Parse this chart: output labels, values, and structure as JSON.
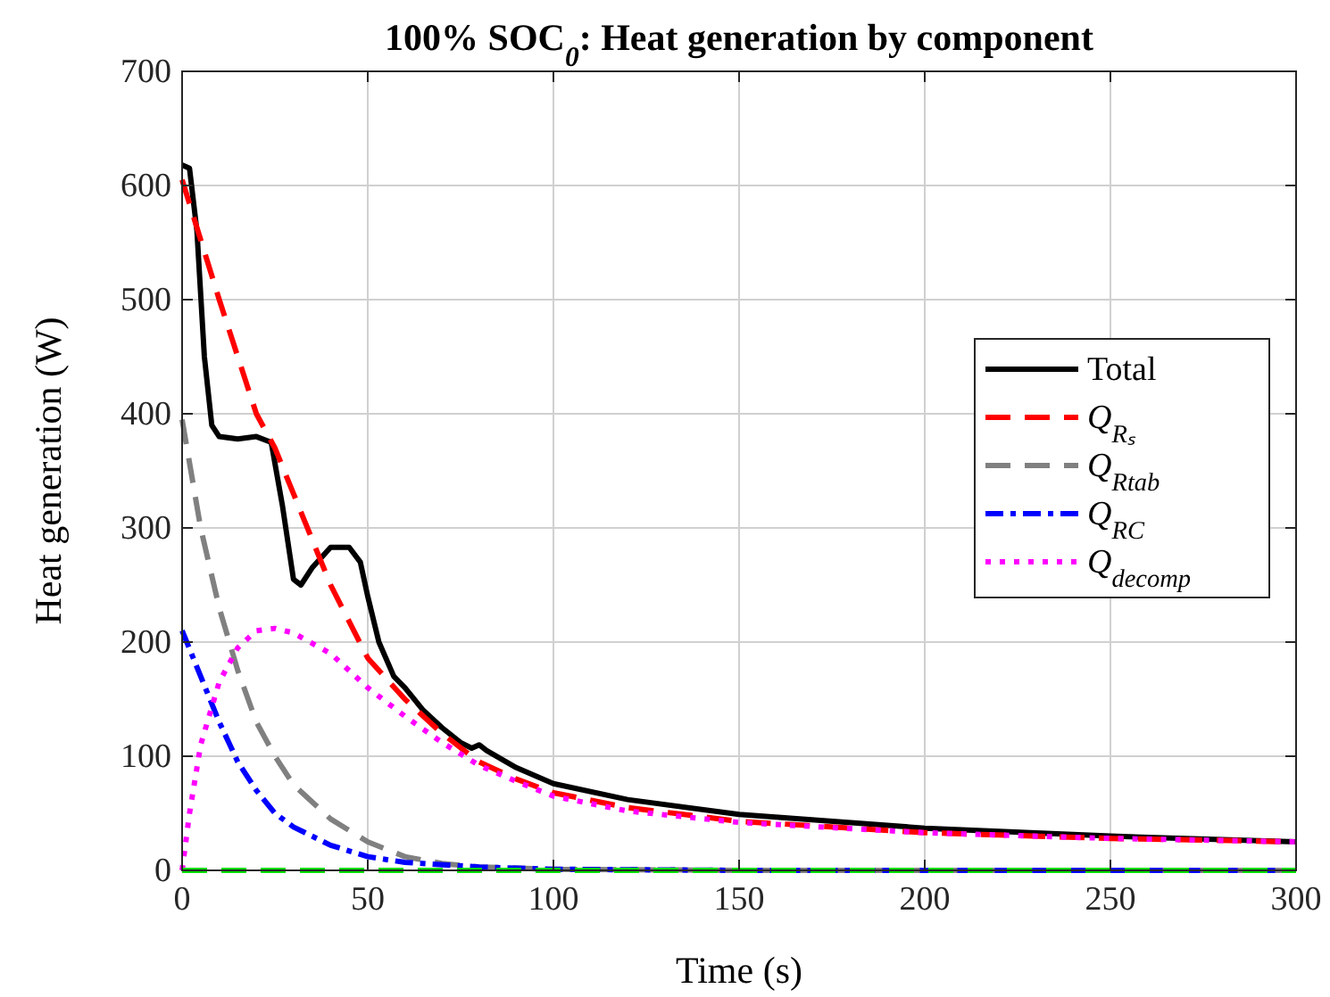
{
  "chart_data": {
    "type": "line",
    "title": "100% SOC$_{0}$: Heat generation by component",
    "xlabel": "Time (s)",
    "ylabel": "Heat generation (W)",
    "xlim": [
      0,
      300
    ],
    "ylim": [
      0,
      700
    ],
    "xticks": [
      0,
      50,
      100,
      150,
      200,
      250,
      300
    ],
    "yticks": [
      0,
      100,
      200,
      300,
      400,
      500,
      600,
      700
    ],
    "grid": true,
    "legend": "right",
    "series": [
      {
        "name": "Total",
        "color": "#000000",
        "line_style": "solid",
        "x": [
          0,
          2,
          4,
          6,
          8,
          10,
          15,
          20,
          24,
          27,
          30,
          32,
          35,
          40,
          45,
          48,
          50,
          53,
          57,
          60,
          65,
          70,
          75,
          78,
          80,
          82,
          90,
          100,
          120,
          150,
          200,
          250,
          300
        ],
        "values": [
          618,
          615,
          560,
          450,
          390,
          380,
          378,
          380,
          375,
          320,
          255,
          250,
          265,
          283,
          283,
          270,
          240,
          200,
          170,
          160,
          140,
          125,
          112,
          107,
          110,
          105,
          90,
          76,
          62,
          49,
          37,
          30,
          25
        ]
      },
      {
        "name": "Q$_{Rₛ}$",
        "color": "#ff0000",
        "line_style": "dashed",
        "x": [
          0,
          10,
          20,
          25,
          30,
          40,
          50,
          60,
          70,
          80,
          90,
          100,
          120,
          150,
          200,
          250,
          300
        ],
        "values": [
          605,
          500,
          400,
          370,
          330,
          250,
          186,
          150,
          120,
          95,
          80,
          68,
          55,
          43,
          33,
          28,
          25
        ]
      },
      {
        "name": "Q$_{Rtab}$",
        "color": "#808080",
        "line_style": "dashed",
        "x": [
          0,
          5,
          10,
          15,
          20,
          25,
          30,
          40,
          50,
          60,
          70,
          80,
          100,
          150,
          300
        ],
        "values": [
          395,
          300,
          230,
          175,
          130,
          100,
          75,
          45,
          25,
          12,
          6,
          3,
          1,
          0,
          0
        ]
      },
      {
        "name": "Q$_{RC}$",
        "color": "#0000ff",
        "line_style": "dashdot",
        "x": [
          0,
          5,
          10,
          15,
          20,
          25,
          30,
          40,
          50,
          60,
          80,
          100,
          150,
          300
        ],
        "values": [
          210,
          170,
          130,
          95,
          70,
          50,
          38,
          22,
          12,
          7,
          3,
          1,
          0,
          0
        ]
      },
      {
        "name": "Q$_{decomp}$",
        "color": "#ff00ff",
        "line_style": "dotted",
        "x": [
          0,
          2,
          5,
          10,
          15,
          20,
          25,
          30,
          40,
          50,
          60,
          70,
          80,
          90,
          100,
          120,
          150,
          200,
          250,
          300
        ],
        "values": [
          0,
          50,
          110,
          165,
          195,
          210,
          212,
          208,
          190,
          160,
          135,
          112,
          92,
          78,
          65,
          52,
          42,
          33,
          28,
          25
        ]
      },
      {
        "color": "#00dd00",
        "line_style": "dashed",
        "x": [
          0,
          300
        ],
        "values": [
          0,
          0
        ]
      }
    ]
  }
}
